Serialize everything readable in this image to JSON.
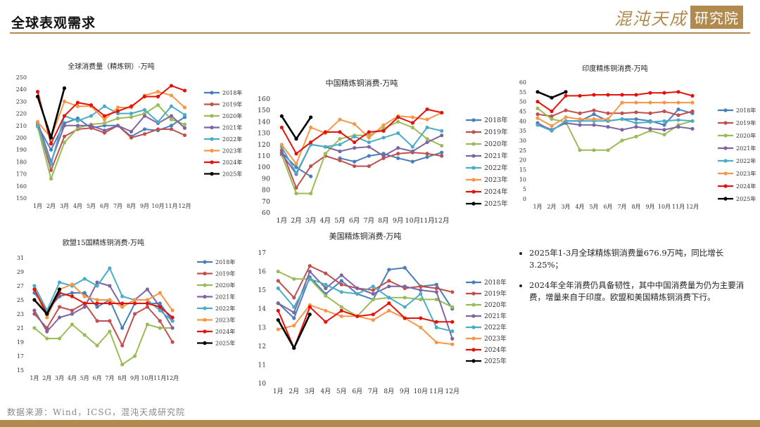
{
  "header": {
    "title": "全球表观需求",
    "logo_script": "混沌天成",
    "logo_box": "研究院"
  },
  "footer": {
    "source": "数据来源：Wind，ICSG，混沌天成研究院"
  },
  "bullets": [
    "2025年1-3月全球精炼铜消费量676.9万吨，同比增长3.25%；",
    "2024年全年消费仍具备韧性，其中中国消费量为仍为主要消费，增量来自于印度。欧盟和美国精炼铜消费下行。"
  ],
  "series_colors": {
    "2018年": "#4a7ebb",
    "2019年": "#c0504d",
    "2020年": "#9bbb59",
    "2021年": "#8064a2",
    "2022年": "#4bacc6",
    "2023年": "#f79646",
    "2024年": "#e3120b",
    "2025年": "#000000"
  },
  "chart_data": [
    {
      "type": "line",
      "title": "全球消费量（精炼铜）-万吨",
      "categories": [
        "1月",
        "2月",
        "3月",
        "4月",
        "5月",
        "6月",
        "7月",
        "8月",
        "9月",
        "10月",
        "11月",
        "12月"
      ],
      "ylim": [
        150,
        250
      ],
      "ytick_step": 10,
      "legend_position": "right",
      "series": [
        {
          "name": "2018年",
          "values": [
            210,
            190,
            212,
            216,
            208,
            210,
            210,
            201,
            207,
            206,
            210,
            217
          ]
        },
        {
          "name": "2019年",
          "values": [
            212,
            173,
            201,
            207,
            208,
            204,
            210,
            200,
            203,
            207,
            207,
            202
          ]
        },
        {
          "name": "2020年",
          "values": [
            209,
            166,
            196,
            208,
            211,
            212,
            216,
            217,
            220,
            227,
            215,
            211
          ]
        },
        {
          "name": "2021年",
          "values": [
            213,
            180,
            210,
            210,
            210,
            206,
            210,
            205,
            218,
            212,
            218,
            208
          ]
        },
        {
          "name": "2022年",
          "values": [
            210,
            178,
            218,
            214,
            218,
            226,
            220,
            220,
            223,
            213,
            226,
            219
          ]
        },
        {
          "name": "2023年",
          "values": [
            213,
            200,
            230,
            226,
            226,
            215,
            225,
            225,
            235,
            238,
            235,
            225
          ]
        },
        {
          "name": "2024年",
          "values": [
            238,
            195,
            218,
            229,
            227,
            218,
            222,
            226,
            234,
            234,
            243,
            239
          ]
        },
        {
          "name": "2025年",
          "values": [
            234,
            200,
            241,
            null,
            null,
            null,
            null,
            null,
            null,
            null,
            null,
            null
          ]
        }
      ]
    },
    {
      "type": "line",
      "title": "中国精炼铜消费-万吨",
      "categories": [
        "1月",
        "2月",
        "3月",
        "4月",
        "5月",
        "6月",
        "7月",
        "8月",
        "9月",
        "10月",
        "11月",
        "12月"
      ],
      "ylim": [
        60,
        160
      ],
      "ytick_step": 10,
      "legend_position": "right",
      "series": [
        {
          "name": "2018年",
          "values": [
            113,
            100,
            92,
            null,
            108,
            105,
            110,
            112,
            108,
            105,
            109,
            113
          ]
        },
        {
          "name": "2019年",
          "values": [
            115,
            82,
            101,
            110,
            106,
            101,
            101,
            108,
            112,
            113,
            112,
            110
          ]
        },
        {
          "name": "2020年",
          "values": [
            111,
            77,
            77,
            112,
            125,
            128,
            128,
            134,
            140,
            135,
            125,
            119
          ]
        },
        {
          "name": "2021年",
          "values": [
            112,
            94,
            120,
            118,
            114,
            117,
            118,
            110,
            117,
            114,
            122,
            128
          ]
        },
        {
          "name": "2022年",
          "values": [
            118,
            95,
            120,
            118,
            120,
            127,
            122,
            126,
            130,
            118,
            135,
            132
          ]
        },
        {
          "name": "2023年",
          "values": [
            120,
            103,
            135,
            130,
            142,
            138,
            126,
            137,
            145,
            144,
            142,
            148
          ]
        },
        {
          "name": "2024年",
          "values": [
            135,
            112,
            122,
            131,
            131,
            122,
            131,
            132,
            144,
            139,
            151,
            148
          ]
        },
        {
          "name": "2025年",
          "values": [
            145,
            125,
            144,
            null,
            null,
            null,
            null,
            null,
            null,
            null,
            null,
            null
          ]
        }
      ]
    },
    {
      "type": "line",
      "title": "印度精炼铜消费-万吨",
      "categories": [
        "1月",
        "2月",
        "3月",
        "4月",
        "5月",
        "6月",
        "7月",
        "8月",
        "9月",
        "10月",
        "11月",
        "12月"
      ],
      "ylim": [
        0,
        60
      ],
      "ytick_step": 5,
      "legend_position": "right",
      "series": [
        {
          "name": "2018年",
          "values": [
            39,
            35,
            40,
            40,
            43.5,
            40,
            41,
            41,
            40,
            38,
            46,
            44
          ]
        },
        {
          "name": "2019年",
          "values": [
            43.5,
            42.5,
            45.5,
            44,
            45.5,
            44,
            44,
            44.5,
            44,
            45,
            43,
            45
          ]
        },
        {
          "name": "2020年",
          "values": [
            46.5,
            41,
            39.5,
            25,
            25,
            25,
            30,
            32,
            35,
            33,
            38,
            40
          ]
        },
        {
          "name": "2021年",
          "values": [
            38.5,
            35.5,
            39,
            38,
            38,
            37,
            35.5,
            37,
            36,
            35.5,
            37,
            36
          ]
        },
        {
          "name": "2022年",
          "values": [
            38,
            35,
            40,
            40,
            40,
            40,
            41,
            39,
            39.5,
            40,
            40.5,
            40
          ]
        },
        {
          "name": "2023年",
          "values": [
            41.5,
            37.5,
            42,
            41,
            41,
            41,
            49.5,
            49.5,
            49.5,
            49.5,
            49.5,
            49.5
          ]
        },
        {
          "name": "2024年",
          "values": [
            50,
            45,
            53,
            53,
            53.5,
            53.5,
            53.5,
            53.5,
            54.5,
            54.5,
            55,
            53
          ]
        },
        {
          "name": "2025年",
          "values": [
            55,
            52,
            55,
            null,
            null,
            null,
            null,
            null,
            null,
            null,
            null,
            null
          ]
        }
      ]
    },
    {
      "type": "line",
      "title": "欧盟15国精炼铜消费-万吨",
      "categories": [
        "1月",
        "2月",
        "3月",
        "4月",
        "5月",
        "6月",
        "7月",
        "8月",
        "9月",
        "10月",
        "11月",
        "12月"
      ],
      "ylim": [
        15,
        31
      ],
      "ytick_step": 2,
      "legend_position": "right",
      "series": [
        {
          "name": "2018年",
          "values": [
            26,
            23.5,
            25.5,
            26,
            26,
            24,
            25,
            21,
            24.5,
            24.5,
            24.5,
            22
          ]
        },
        {
          "name": "2019年",
          "values": [
            23,
            21,
            24,
            23.5,
            24.5,
            22,
            22,
            18.5,
            23,
            24,
            22,
            19
          ]
        },
        {
          "name": "2020年",
          "values": [
            21,
            19.5,
            19.5,
            21.5,
            20,
            18.5,
            20.5,
            15.8,
            17,
            21.5,
            21,
            21
          ]
        },
        {
          "name": "2021年",
          "values": [
            23.5,
            20.5,
            22.5,
            23,
            24,
            27.5,
            27,
            24,
            25,
            26.5,
            24,
            21
          ]
        },
        {
          "name": "2022年",
          "values": [
            27,
            23.5,
            27.5,
            27,
            28,
            27,
            29.5,
            25.5,
            25,
            25,
            23.5,
            22
          ]
        },
        {
          "name": "2023年",
          "values": [
            26.5,
            22.5,
            26.5,
            27.2,
            25.5,
            25,
            25,
            24,
            25,
            25,
            26,
            23.5
          ]
        },
        {
          "name": "2024年",
          "values": [
            26.5,
            23,
            26,
            25.5,
            24.5,
            24.5,
            24.5,
            24.5,
            24.5,
            24.5,
            24,
            22.5
          ]
        },
        {
          "name": "2025年",
          "values": [
            25,
            23,
            26.5,
            null,
            null,
            null,
            null,
            null,
            null,
            null,
            null,
            null
          ]
        }
      ]
    },
    {
      "type": "line",
      "title": "美国精炼铜消费-万吨",
      "categories": [
        "1月",
        "2月",
        "3月",
        "4月",
        "5月",
        "6月",
        "7月",
        "8月",
        "9月",
        "10月",
        "11月",
        "12月"
      ],
      "ylim": [
        10,
        17
      ],
      "ytick_step": 1,
      "legend_position": "right",
      "series": [
        {
          "name": "2018年",
          "values": [
            14.3,
            13.5,
            15.7,
            14.8,
            15.5,
            14.8,
            14.5,
            16.1,
            16.2,
            15.2,
            15.3,
            14
          ]
        },
        {
          "name": "2019年",
          "values": [
            15.5,
            14.6,
            16.3,
            15.9,
            15.3,
            15.1,
            15,
            15.5,
            15.1,
            15.2,
            15.1,
            14.9
          ]
        },
        {
          "name": "2020年",
          "values": [
            16,
            15.6,
            15.6,
            14.7,
            14.1,
            13.6,
            14.5,
            14.6,
            14.6,
            14.5,
            14.5,
            14.1
          ]
        },
        {
          "name": "2021年",
          "values": [
            14.3,
            13.8,
            16,
            15.1,
            15.8,
            15.1,
            14.8,
            15.2,
            15.2,
            15,
            14.9,
            12.4
          ]
        },
        {
          "name": "2022年",
          "values": [
            15.1,
            14.1,
            15.6,
            15.3,
            14.9,
            14.8,
            15.2,
            14.6,
            14.1,
            14.8,
            13,
            12.8
          ]
        },
        {
          "name": "2023年",
          "values": [
            12.9,
            13.1,
            14.2,
            13.9,
            13.6,
            13.6,
            13.4,
            13.9,
            13.5,
            13,
            12.2,
            12.1
          ]
        },
        {
          "name": "2024年",
          "values": [
            13.9,
            11.9,
            14.1,
            13.3,
            13.9,
            13.6,
            13.7,
            14.3,
            13.5,
            13.5,
            13.3,
            13.3
          ]
        },
        {
          "name": "2025年",
          "values": [
            13.4,
            11.9,
            13.7,
            null,
            null,
            null,
            null,
            null,
            null,
            null,
            null,
            null
          ]
        }
      ]
    }
  ]
}
